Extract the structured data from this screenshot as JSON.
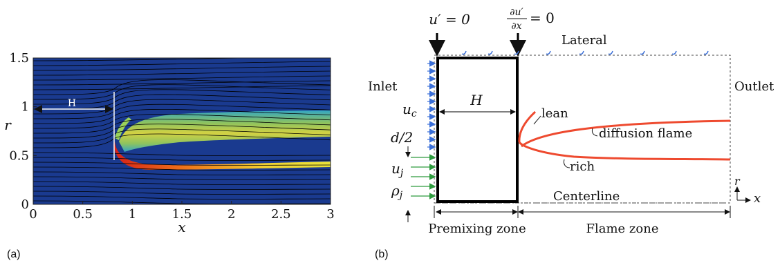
{
  "panel_a": {
    "label": "(a)",
    "x_axis_label": "x",
    "y_axis_label": "r",
    "x_ticks": [
      "0",
      "0.5",
      "1",
      "1.5",
      "2",
      "2.5",
      "3"
    ],
    "y_ticks": [
      "0",
      "0.5",
      "1",
      "1.5"
    ],
    "x_range": [
      0,
      3
    ],
    "y_range": [
      0,
      1.5
    ],
    "h_label": "H",
    "colors": {
      "field": "#1a3a8f",
      "streamline": "#000000",
      "flame_hot": "#d62018",
      "flame_mid": "#f1c232",
      "flame_cool": "#36b1c9"
    }
  },
  "panel_b": {
    "label": "(b)",
    "bc_left": "u′ = 0",
    "bc_right_num": "∂u′",
    "bc_right_den": "∂x",
    "bc_right_eq": "= 0",
    "lateral": "Lateral",
    "inlet": "Inlet",
    "outlet": "Outlet",
    "centerline": "Centerline",
    "h_label": "H",
    "uc": "u",
    "uc_sub": "c",
    "d2": "d/2",
    "uj": "u",
    "uj_sub": "j",
    "rhoj": "ρ",
    "rhoj_sub": "j",
    "lean": "lean",
    "diffusion_flame": "diffusion flame",
    "rich": "rich",
    "premixing_zone": "Premixing zone",
    "flame_zone": "Flame zone",
    "axis_r": "r",
    "axis_x": "x",
    "colors": {
      "flame": "#ee4a2f",
      "coflow_arrow": "#3a6fd8",
      "jet_arrow": "#2e9b3e"
    }
  }
}
